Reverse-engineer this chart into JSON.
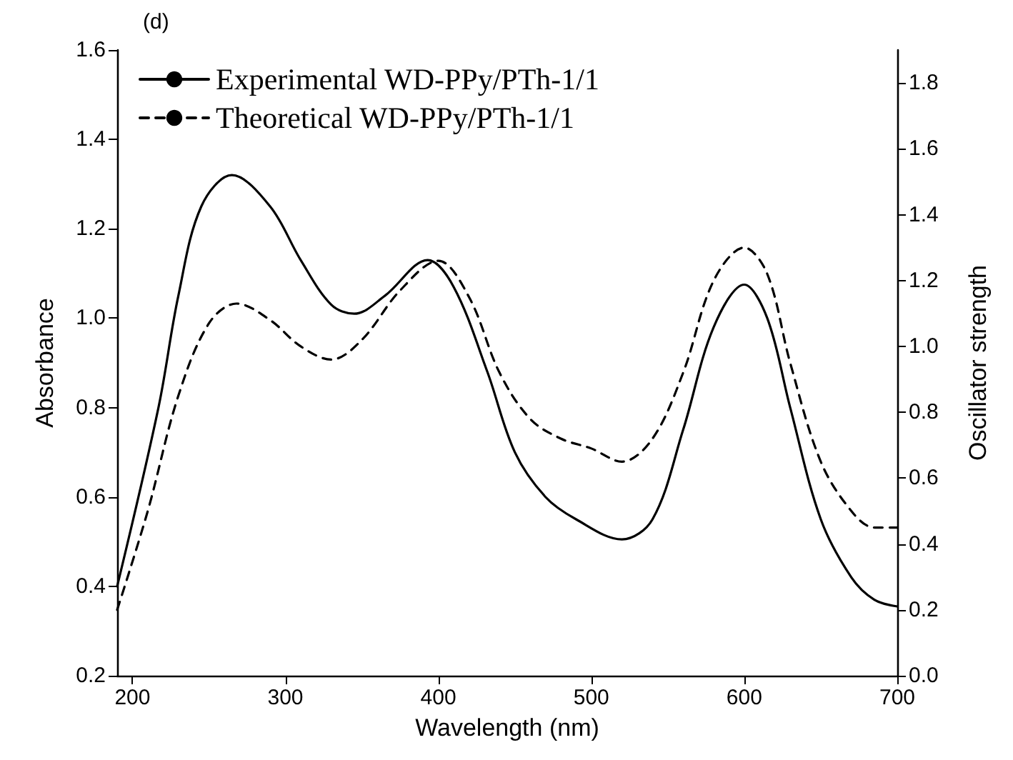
{
  "chart_data": {
    "type": "line",
    "xlabel": "Wavelength (nm)",
    "ylabel": "Absorbance",
    "y2label": "Oscillator strength",
    "annotations": [
      "(d)"
    ],
    "xlim": [
      190,
      700
    ],
    "xticks": [
      200,
      300,
      400,
      500,
      600,
      700
    ],
    "ylim": [
      0.2,
      1.6
    ],
    "yticks": [
      0.2,
      0.4,
      0.6,
      0.8,
      {
        "value": 1.0,
        "label": "1.0"
      },
      1.2,
      1.4,
      1.6
    ],
    "y2lim": [
      0,
      1.9
    ],
    "y2ticks": [
      {
        "value": 0,
        "label": "0.0"
      },
      0.2,
      0.4,
      0.6,
      0.8,
      {
        "value": 1.0,
        "label": "1.0"
      },
      1.2,
      1.4,
      1.6,
      1.8
    ],
    "grid": false,
    "legend": "top left",
    "marker": "none",
    "series": [
      {
        "name": "Experimental WD-PPy/PTh-1/1",
        "color": "#000000",
        "line_style": "solid",
        "x": [
          190,
          217,
          230,
          245,
          265,
          290,
          310,
          330,
          345,
          365,
          393,
          410,
          432,
          450,
          470,
          490,
          520,
          540,
          560,
          580,
          600,
          615,
          630,
          650,
          670,
          685,
          700
        ],
        "values": [
          0.4,
          0.8,
          1.05,
          1.25,
          1.32,
          1.25,
          1.13,
          1.03,
          1.01,
          1.05,
          1.13,
          1.07,
          0.88,
          0.7,
          0.6,
          0.55,
          0.505,
          0.55,
          0.75,
          0.98,
          1.075,
          1.0,
          0.8,
          0.55,
          0.42,
          0.37,
          0.355
        ]
      },
      {
        "name": "Theoretical WD-PPy/PTh-1/1",
        "color": "#000000",
        "line_style": "dashed",
        "axis": "y2",
        "x": [
          190,
          210,
          230,
          250,
          268,
          290,
          310,
          330,
          350,
          375,
          400,
          420,
          440,
          460,
          480,
          500,
          520,
          540,
          560,
          580,
          600,
          615,
          630,
          650,
          670,
          685,
          700
        ],
        "values": [
          0.2,
          0.5,
          0.85,
          1.07,
          1.13,
          1.08,
          1.0,
          0.96,
          1.02,
          1.17,
          1.26,
          1.15,
          0.92,
          0.78,
          0.72,
          0.69,
          0.65,
          0.72,
          0.92,
          1.2,
          1.3,
          1.22,
          0.95,
          0.65,
          0.5,
          0.45,
          0.45
        ]
      }
    ]
  }
}
